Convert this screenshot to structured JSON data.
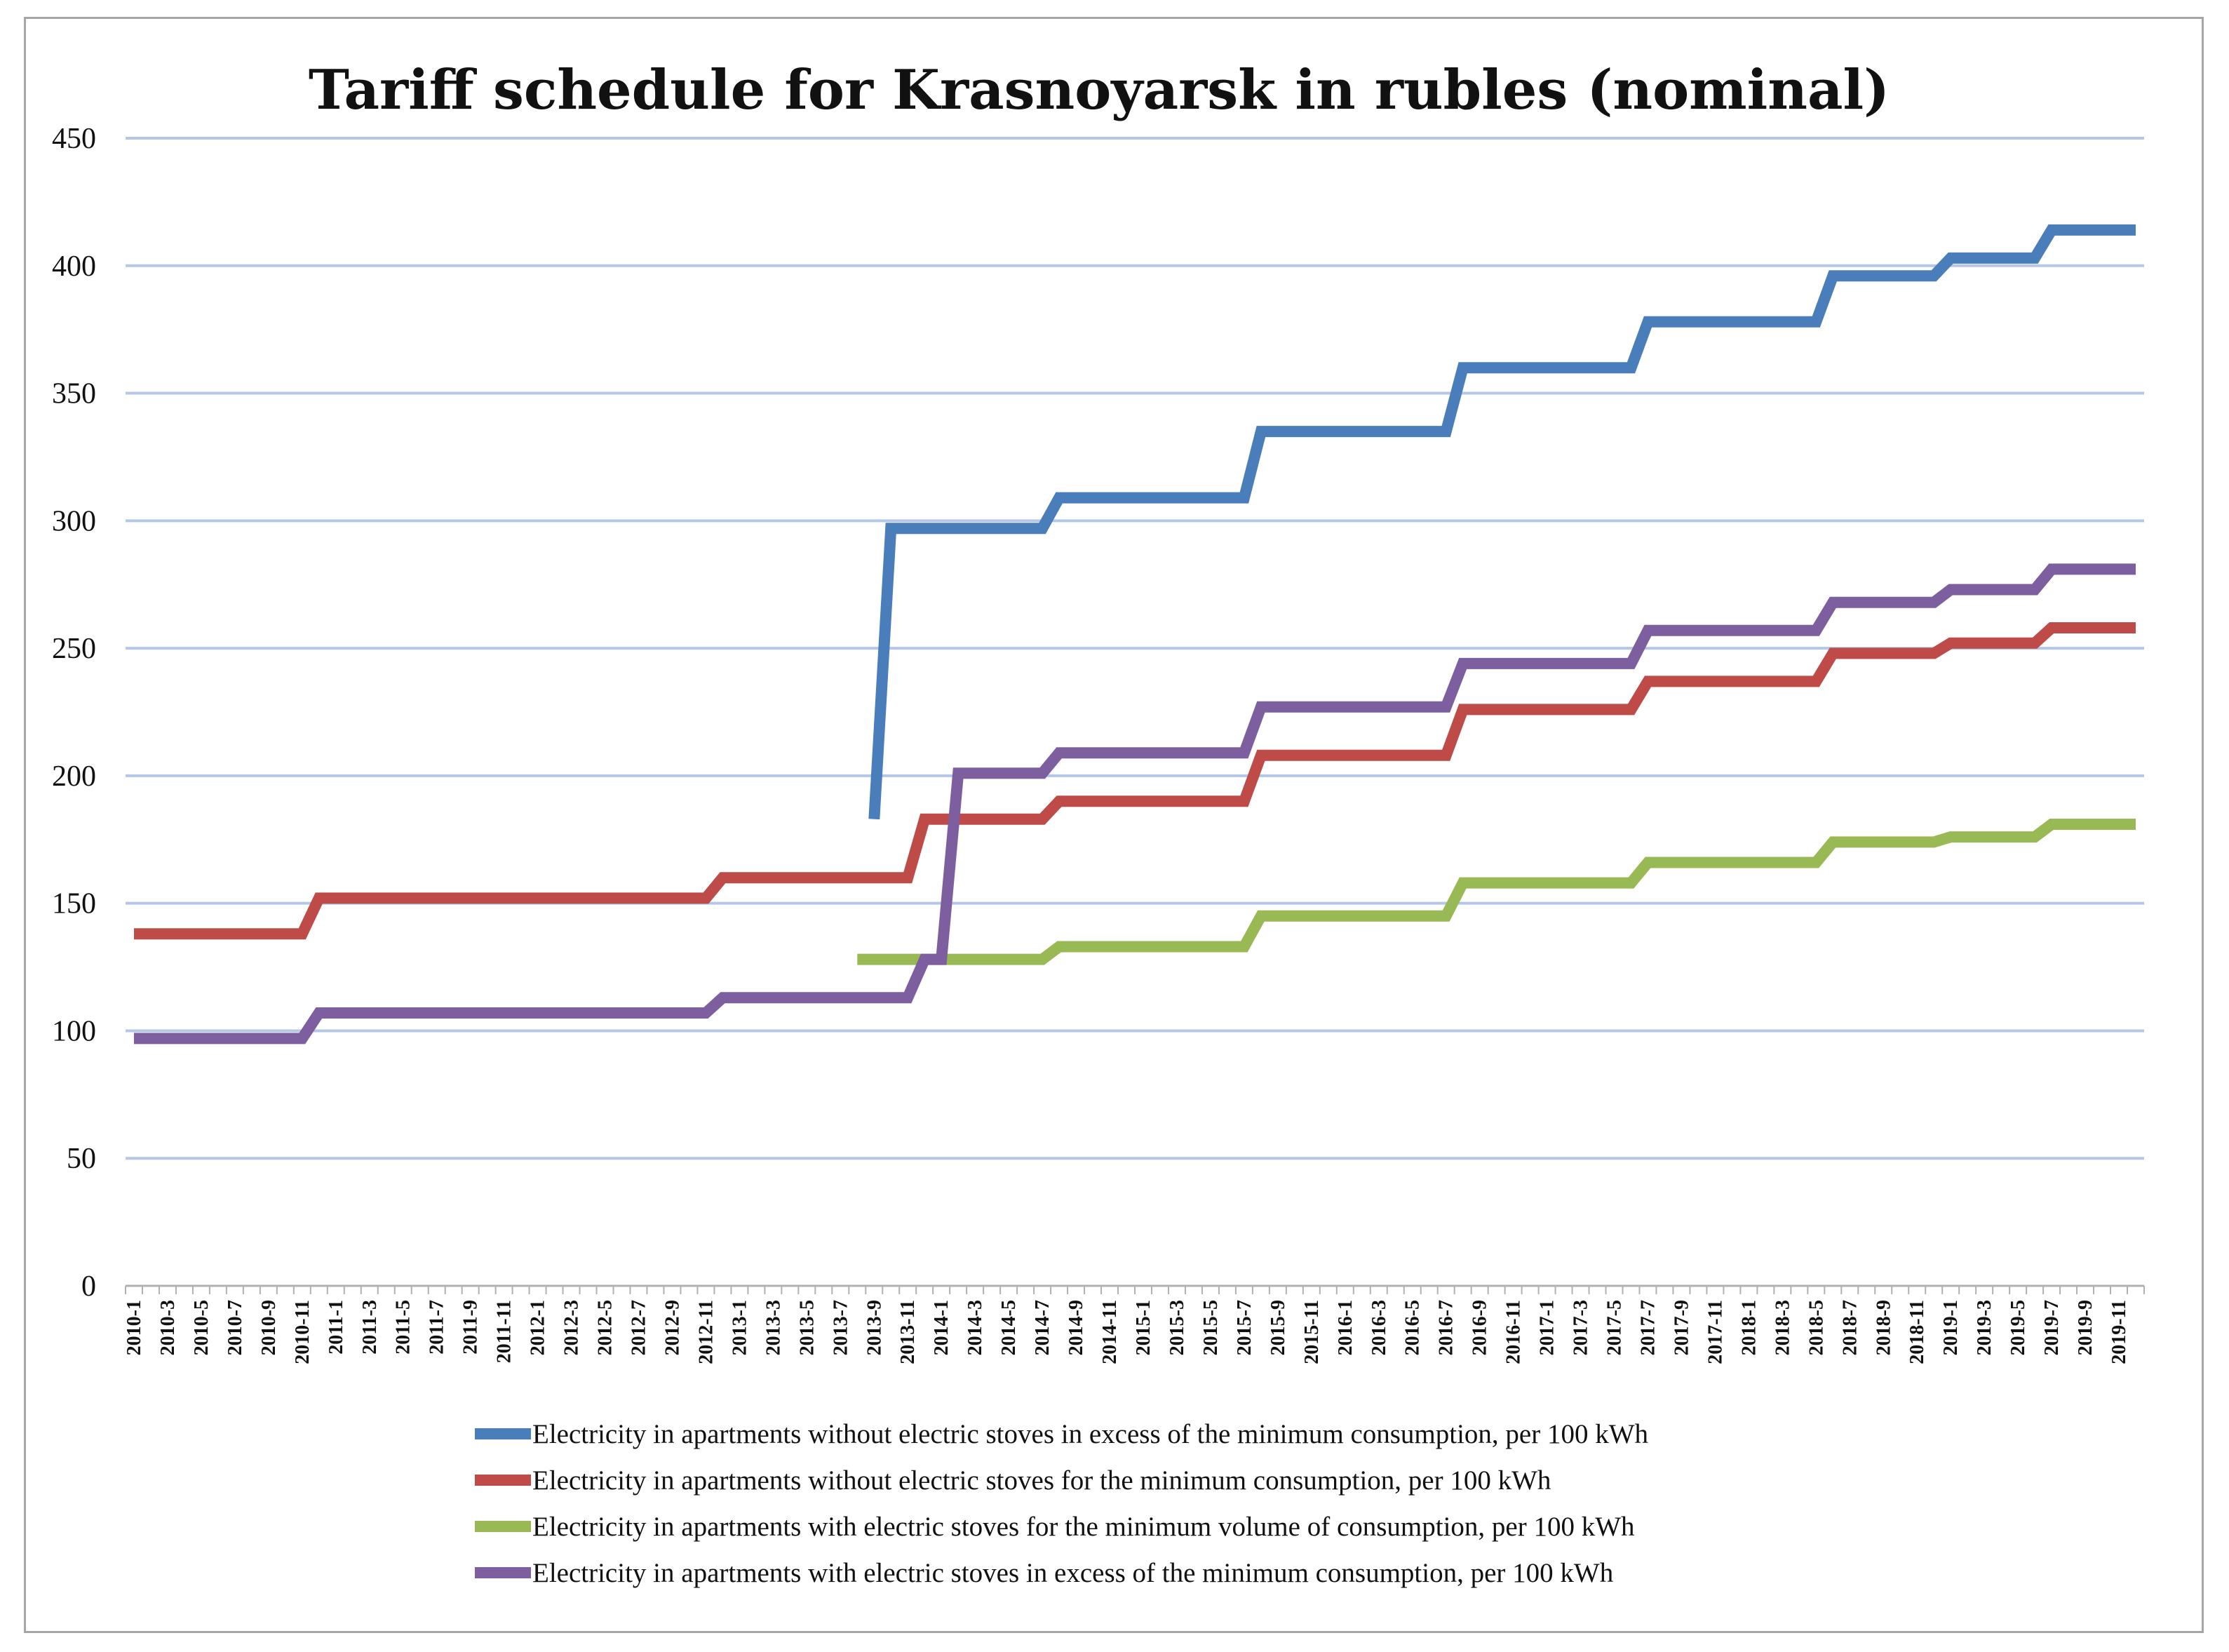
{
  "chart_data": {
    "type": "line",
    "title": "Tariff schedule for Krasnoyarsk   in rubles (nominal)",
    "xlabel": "",
    "ylabel": "",
    "ylim": [
      0,
      450
    ],
    "yticks": [
      0,
      50,
      100,
      150,
      200,
      250,
      300,
      350,
      400,
      450
    ],
    "grid": true,
    "legend_position": "bottom",
    "x_tick_labels": [
      "2010-1",
      "2010-3",
      "2010-5",
      "2010-7",
      "2010-9",
      "2010-11",
      "2011-1",
      "2011-3",
      "2011-5",
      "2011-7",
      "2011-9",
      "2011-11",
      "2012-1",
      "2012-3",
      "2012-5",
      "2012-7",
      "2012-9",
      "2012-11",
      "2013-1",
      "2013-3",
      "2013-5",
      "2013-7",
      "2013-9",
      "2013-11",
      "2014-1",
      "2014-3",
      "2014-5",
      "2014-7",
      "2014-9",
      "2014-11",
      "2015-1",
      "2015-3",
      "2015-5",
      "2015-7",
      "2015-9",
      "2015-11",
      "2016-1",
      "2016-3",
      "2016-5",
      "2016-7",
      "2016-9",
      "2016-11",
      "2017-1",
      "2017-3",
      "2017-5",
      "2017-7",
      "2017-9",
      "2017-11",
      "2018-1",
      "2018-3",
      "2018-5",
      "2018-7",
      "2018-9",
      "2018-11",
      "2019-1",
      "2019-3",
      "2019-5",
      "2019-7",
      "2019-9",
      "2019-11"
    ],
    "series": [
      {
        "name": "Electricity in apartments without electric stoves in excess of the minimum consumption, per 100 kWh",
        "color": "#4a7ebb",
        "points": [
          [
            44,
            183
          ],
          [
            45,
            297
          ],
          [
            54,
            297
          ],
          [
            55,
            309
          ],
          [
            66,
            309
          ],
          [
            67,
            335
          ],
          [
            78,
            335
          ],
          [
            79,
            360
          ],
          [
            89,
            360
          ],
          [
            90,
            378
          ],
          [
            100,
            378
          ],
          [
            101,
            396
          ],
          [
            107,
            396
          ],
          [
            108,
            403
          ],
          [
            113,
            403
          ],
          [
            114,
            414
          ],
          [
            119,
            414
          ]
        ]
      },
      {
        "name": "Electricity in apartments without electric stoves for the minimum consumption, per 100 kWh",
        "color": "#be4b48",
        "points": [
          [
            0,
            138
          ],
          [
            10,
            138
          ],
          [
            11,
            152
          ],
          [
            22,
            152
          ],
          [
            23,
            152
          ],
          [
            34,
            152
          ],
          [
            35,
            160
          ],
          [
            46,
            160
          ],
          [
            47,
            183
          ],
          [
            54,
            183
          ],
          [
            55,
            190
          ],
          [
            66,
            190
          ],
          [
            67,
            208
          ],
          [
            78,
            208
          ],
          [
            79,
            226
          ],
          [
            89,
            226
          ],
          [
            90,
            237
          ],
          [
            100,
            237
          ],
          [
            101,
            248
          ],
          [
            107,
            248
          ],
          [
            108,
            252
          ],
          [
            113,
            252
          ],
          [
            114,
            258
          ],
          [
            119,
            258
          ]
        ]
      },
      {
        "name": "Electricity in apartments with electric stoves for the minimum volume of consumption, per 100 kWh",
        "color": "#98b954",
        "points": [
          [
            43,
            128
          ],
          [
            54,
            128
          ],
          [
            55,
            133
          ],
          [
            66,
            133
          ],
          [
            67,
            145
          ],
          [
            78,
            145
          ],
          [
            79,
            158
          ],
          [
            89,
            158
          ],
          [
            90,
            166
          ],
          [
            100,
            166
          ],
          [
            101,
            174
          ],
          [
            107,
            174
          ],
          [
            108,
            176
          ],
          [
            113,
            176
          ],
          [
            114,
            181
          ],
          [
            119,
            181
          ]
        ]
      },
      {
        "name": "Electricity in apartments with electric stoves in excess of the minimum consumption, per 100 kWh",
        "color": "#7d5fa0",
        "points": [
          [
            0,
            97
          ],
          [
            10,
            97
          ],
          [
            11,
            107
          ],
          [
            22,
            107
          ],
          [
            34,
            107
          ],
          [
            35,
            113
          ],
          [
            46,
            113
          ],
          [
            47,
            128
          ],
          [
            48,
            128
          ],
          [
            49,
            201
          ],
          [
            54,
            201
          ],
          [
            55,
            209
          ],
          [
            66,
            209
          ],
          [
            67,
            227
          ],
          [
            78,
            227
          ],
          [
            79,
            244
          ],
          [
            89,
            244
          ],
          [
            90,
            257
          ],
          [
            95,
            257
          ],
          [
            96,
            257
          ],
          [
            100,
            257
          ],
          [
            101,
            268
          ],
          [
            107,
            268
          ],
          [
            108,
            273
          ],
          [
            113,
            273
          ],
          [
            114,
            281
          ],
          [
            119,
            281
          ]
        ]
      }
    ]
  }
}
